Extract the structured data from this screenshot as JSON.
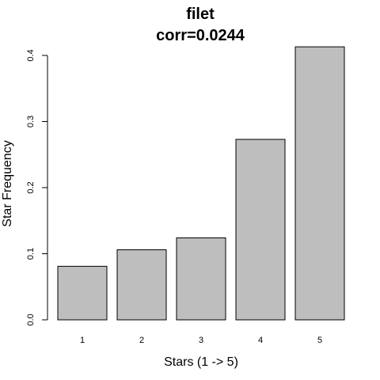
{
  "chart_data": {
    "type": "bar",
    "title": "filet",
    "subtitle": "corr=0.0244",
    "xlabel": "Stars (1 -> 5)",
    "ylabel": "Star Frequency",
    "categories": [
      "1",
      "2",
      "3",
      "4",
      "5"
    ],
    "values": [
      0.081,
      0.106,
      0.124,
      0.273,
      0.413
    ],
    "yticks": [
      "0.0",
      "0.1",
      "0.2",
      "0.3",
      "0.4"
    ],
    "ylim": [
      0,
      0.4
    ],
    "bar_color": "#bebebe",
    "grid": false
  }
}
